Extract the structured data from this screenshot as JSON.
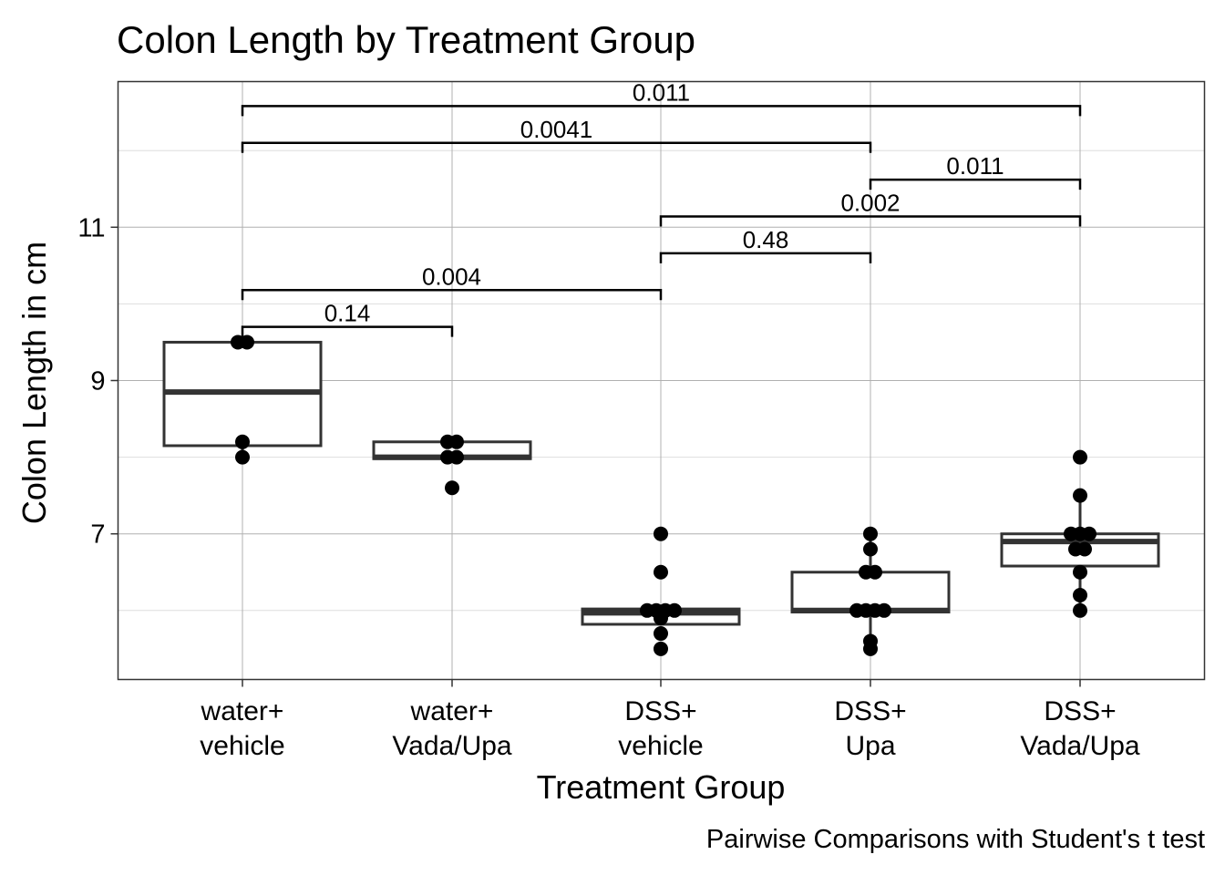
{
  "chart_data": {
    "type": "box",
    "title": "Colon Length by Treatment Group",
    "xlabel": "Treatment Group",
    "ylabel": "Colon Length in cm",
    "caption": "Pairwise Comparisons with Student's t test",
    "ylim": [
      5.1,
      12.9
    ],
    "yticks": [
      7,
      9,
      11
    ],
    "grid": true,
    "categories": [
      {
        "line1": "water+",
        "line2": "vehicle"
      },
      {
        "line1": "water+",
        "line2": "Vada/Upa"
      },
      {
        "line1": "DSS+",
        "line2": "vehicle"
      },
      {
        "line1": "DSS+",
        "line2": "Upa"
      },
      {
        "line1": "DSS+",
        "line2": "Vada/Upa"
      }
    ],
    "boxes": [
      {
        "q1": 8.15,
        "median": 8.85,
        "q3": 9.5,
        "whisker_low": 8.0,
        "whisker_high": 9.5
      },
      {
        "q1": 7.98,
        "median": 8.0,
        "q3": 8.2,
        "whisker_low": 7.98,
        "whisker_high": 8.2
      },
      {
        "q1": 5.82,
        "median": 5.97,
        "q3": 6.02,
        "whisker_low": 5.82,
        "whisker_high": 6.02
      },
      {
        "q1": 5.98,
        "median": 6.0,
        "q3": 6.5,
        "whisker_low": 5.5,
        "whisker_high": 7.0
      },
      {
        "q1": 6.58,
        "median": 6.9,
        "q3": 7.0,
        "whisker_low": 6.0,
        "whisker_high": 7.5
      }
    ],
    "points": [
      [
        9.5,
        9.5,
        8.2,
        8.0
      ],
      [
        8.2,
        8.2,
        8.0,
        8.0,
        7.6
      ],
      [
        7.0,
        6.5,
        6.0,
        6.0,
        6.0,
        6.0,
        5.9,
        5.7,
        5.5
      ],
      [
        7.0,
        6.8,
        6.5,
        6.5,
        6.0,
        6.0,
        6.0,
        6.0,
        5.6,
        5.5
      ],
      [
        8.0,
        7.5,
        7.0,
        7.0,
        7.0,
        6.8,
        6.8,
        6.5,
        6.2,
        6.0
      ]
    ],
    "comparisons": [
      {
        "from": 0,
        "to": 1,
        "y": 9.7,
        "label": "0.14"
      },
      {
        "from": 0,
        "to": 2,
        "y": 10.18,
        "label": "0.004"
      },
      {
        "from": 2,
        "to": 3,
        "y": 10.66,
        "label": "0.48"
      },
      {
        "from": 2,
        "to": 4,
        "y": 11.14,
        "label": "0.002"
      },
      {
        "from": 3,
        "to": 4,
        "y": 11.62,
        "label": "0.011"
      },
      {
        "from": 0,
        "to": 3,
        "y": 12.1,
        "label": "0.0041"
      },
      {
        "from": 0,
        "to": 4,
        "y": 12.58,
        "label": "0.011"
      }
    ]
  }
}
